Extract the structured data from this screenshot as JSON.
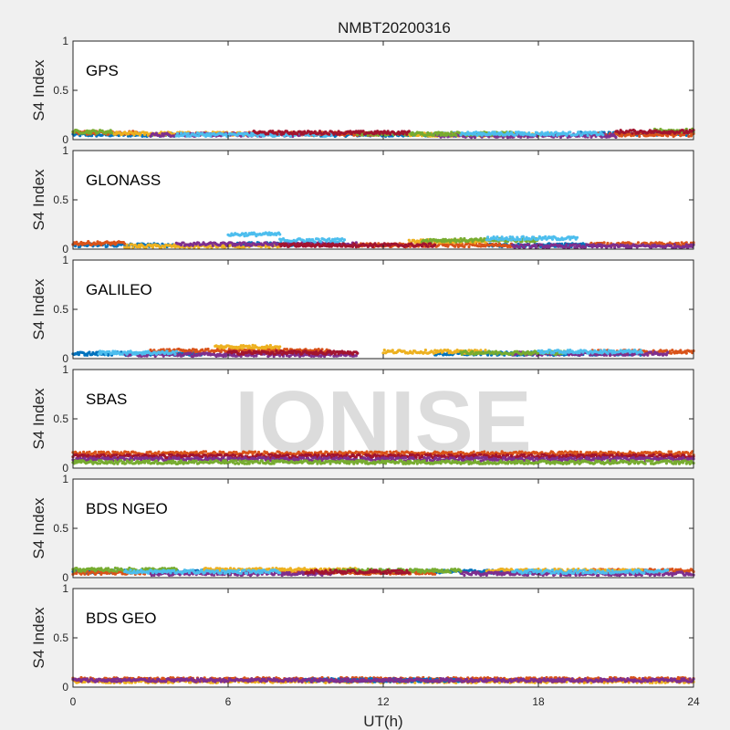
{
  "figure": {
    "title": "NMBT20200316",
    "xlabel": "UT(h)",
    "x_ticks": [
      "0",
      "6",
      "12",
      "18",
      "24"
    ],
    "watermark": "IONISE"
  },
  "colors": {
    "background": "#f0f0f0",
    "axes_bg": "#ffffff",
    "series": [
      "#0072bd",
      "#d95319",
      "#edb120",
      "#7e2f8e",
      "#77ac30",
      "#4dbeee",
      "#a2142f"
    ]
  },
  "chart_data": [
    {
      "type": "scatter",
      "title": "GPS",
      "ylabel": "S4 Index",
      "xlim": [
        0,
        24
      ],
      "ylim": [
        0,
        1
      ],
      "y_ticks": [
        "0",
        "0.5",
        "1"
      ],
      "series": [
        {
          "color": "#0072bd",
          "segments": [
            {
              "x0": 0,
              "x1": 4,
              "y": 0.05
            },
            {
              "x0": 9,
              "x1": 15,
              "y": 0.05
            },
            {
              "x0": 19.5,
              "x1": 24,
              "y": 0.06
            }
          ]
        },
        {
          "color": "#d95319",
          "segments": [
            {
              "x0": 0,
              "x1": 2.5,
              "y": 0.07
            },
            {
              "x0": 6,
              "x1": 12,
              "y": 0.06
            },
            {
              "x0": 20,
              "x1": 24,
              "y": 0.05
            }
          ]
        },
        {
          "color": "#edb120",
          "segments": [
            {
              "x0": 1.5,
              "x1": 7,
              "y": 0.06
            },
            {
              "x0": 13,
              "x1": 19,
              "y": 0.05
            }
          ]
        },
        {
          "color": "#7e2f8e",
          "segments": [
            {
              "x0": 3,
              "x1": 9,
              "y": 0.05
            },
            {
              "x0": 14,
              "x1": 21,
              "y": 0.04
            }
          ]
        },
        {
          "color": "#77ac30",
          "segments": [
            {
              "x0": 0,
              "x1": 1.5,
              "y": 0.08
            },
            {
              "x0": 11,
              "x1": 17,
              "y": 0.06
            },
            {
              "x0": 22.5,
              "x1": 24,
              "y": 0.09
            }
          ]
        },
        {
          "color": "#4dbeee",
          "segments": [
            {
              "x0": 4,
              "x1": 10,
              "y": 0.05
            },
            {
              "x0": 15,
              "x1": 20.5,
              "y": 0.06
            }
          ]
        },
        {
          "color": "#a2142f",
          "segments": [
            {
              "x0": 7,
              "x1": 13,
              "y": 0.07
            },
            {
              "x0": 21,
              "x1": 24,
              "y": 0.08
            }
          ]
        }
      ]
    },
    {
      "type": "scatter",
      "title": "GLONASS",
      "ylabel": "S4 Index",
      "xlim": [
        0,
        24
      ],
      "ylim": [
        0,
        1
      ],
      "y_ticks": [
        "0",
        "0.5",
        "1"
      ],
      "series": [
        {
          "color": "#0072bd",
          "segments": [
            {
              "x0": 0,
              "x1": 4,
              "y": 0.04
            },
            {
              "x0": 6,
              "x1": 10,
              "y": 0.05
            },
            {
              "x0": 16,
              "x1": 20,
              "y": 0.04
            }
          ]
        },
        {
          "color": "#d95319",
          "segments": [
            {
              "x0": 0,
              "x1": 2,
              "y": 0.06
            },
            {
              "x0": 11,
              "x1": 17,
              "y": 0.04
            },
            {
              "x0": 20,
              "x1": 24,
              "y": 0.05
            }
          ]
        },
        {
          "color": "#edb120",
          "segments": [
            {
              "x0": 2,
              "x1": 8,
              "y": 0.03
            },
            {
              "x0": 13,
              "x1": 16,
              "y": 0.08
            }
          ]
        },
        {
          "color": "#7e2f8e",
          "segments": [
            {
              "x0": 4,
              "x1": 11,
              "y": 0.05
            },
            {
              "x0": 17,
              "x1": 24,
              "y": 0.03
            }
          ]
        },
        {
          "color": "#77ac30",
          "segments": [
            {
              "x0": 13.5,
              "x1": 18,
              "y": 0.09
            }
          ]
        },
        {
          "color": "#4dbeee",
          "segments": [
            {
              "x0": 6,
              "x1": 8,
              "y": 0.15
            },
            {
              "x0": 8,
              "x1": 10.5,
              "y": 0.09
            },
            {
              "x0": 16,
              "x1": 19.5,
              "y": 0.11
            }
          ]
        },
        {
          "color": "#a2142f",
          "segments": [
            {
              "x0": 8,
              "x1": 14,
              "y": 0.04
            }
          ]
        }
      ]
    },
    {
      "type": "scatter",
      "title": "GALILEO",
      "ylabel": "S4 Index",
      "xlim": [
        0,
        24
      ],
      "ylim": [
        0,
        1
      ],
      "y_ticks": [
        "0",
        "0.5",
        "1"
      ],
      "series": [
        {
          "color": "#0072bd",
          "segments": [
            {
              "x0": 0,
              "x1": 5,
              "y": 0.05
            },
            {
              "x0": 14,
              "x1": 22,
              "y": 0.05
            }
          ]
        },
        {
          "color": "#d95319",
          "segments": [
            {
              "x0": 3,
              "x1": 10,
              "y": 0.08
            },
            {
              "x0": 20,
              "x1": 24,
              "y": 0.07
            }
          ]
        },
        {
          "color": "#edb120",
          "segments": [
            {
              "x0": 5.5,
              "x1": 8,
              "y": 0.12
            },
            {
              "x0": 12,
              "x1": 16,
              "y": 0.07
            }
          ]
        },
        {
          "color": "#7e2f8e",
          "segments": [
            {
              "x0": 2,
              "x1": 11,
              "y": 0.04
            },
            {
              "x0": 17,
              "x1": 23,
              "y": 0.05
            }
          ]
        },
        {
          "color": "#77ac30",
          "segments": [
            {
              "x0": 15,
              "x1": 19,
              "y": 0.06
            }
          ]
        },
        {
          "color": "#4dbeee",
          "segments": [
            {
              "x0": 1,
              "x1": 4,
              "y": 0.06
            },
            {
              "x0": 18,
              "x1": 22,
              "y": 0.07
            }
          ]
        },
        {
          "color": "#a2142f",
          "segments": [
            {
              "x0": 6,
              "x1": 11,
              "y": 0.06
            }
          ]
        }
      ]
    },
    {
      "type": "scatter",
      "title": "SBAS",
      "ylabel": "S4 Index",
      "xlim": [
        0,
        24
      ],
      "ylim": [
        0,
        1
      ],
      "y_ticks": [
        "0",
        "0.5",
        "1"
      ],
      "series": [
        {
          "color": "#d95319",
          "segments": [
            {
              "x0": 0,
              "x1": 24,
              "y": 0.15
            }
          ]
        },
        {
          "color": "#a2142f",
          "segments": [
            {
              "x0": 0,
              "x1": 24,
              "y": 0.12
            }
          ]
        },
        {
          "color": "#7e2f8e",
          "segments": [
            {
              "x0": 0,
              "x1": 24,
              "y": 0.09
            }
          ]
        },
        {
          "color": "#77ac30",
          "segments": [
            {
              "x0": 0,
              "x1": 24,
              "y": 0.06
            }
          ]
        }
      ]
    },
    {
      "type": "scatter",
      "title": "BDS NGEO",
      "ylabel": "S4 Index",
      "xlim": [
        0,
        24
      ],
      "ylim": [
        0,
        1
      ],
      "y_ticks": [
        "0",
        "0.5",
        "1"
      ],
      "series": [
        {
          "color": "#0072bd",
          "segments": [
            {
              "x0": 0,
              "x1": 6,
              "y": 0.06
            },
            {
              "x0": 12,
              "x1": 18,
              "y": 0.06
            }
          ]
        },
        {
          "color": "#d95319",
          "segments": [
            {
              "x0": 0,
              "x1": 3,
              "y": 0.05
            },
            {
              "x0": 8,
              "x1": 14,
              "y": 0.05
            },
            {
              "x0": 20,
              "x1": 24,
              "y": 0.07
            }
          ]
        },
        {
          "color": "#edb120",
          "segments": [
            {
              "x0": 5,
              "x1": 11,
              "y": 0.08
            },
            {
              "x0": 16,
              "x1": 22,
              "y": 0.07
            }
          ]
        },
        {
          "color": "#7e2f8e",
          "segments": [
            {
              "x0": 3,
              "x1": 10,
              "y": 0.04
            },
            {
              "x0": 15,
              "x1": 24,
              "y": 0.04
            }
          ]
        },
        {
          "color": "#77ac30",
          "segments": [
            {
              "x0": 0,
              "x1": 4,
              "y": 0.08
            },
            {
              "x0": 10,
              "x1": 15,
              "y": 0.07
            }
          ]
        },
        {
          "color": "#4dbeee",
          "segments": [
            {
              "x0": 2,
              "x1": 8,
              "y": 0.06
            },
            {
              "x0": 17,
              "x1": 23,
              "y": 0.06
            }
          ]
        },
        {
          "color": "#a2142f",
          "segments": [
            {
              "x0": 9,
              "x1": 13,
              "y": 0.06
            }
          ]
        }
      ]
    },
    {
      "type": "scatter",
      "title": "BDS GEO",
      "ylabel": "S4 Index",
      "xlim": [
        0,
        24
      ],
      "ylim": [
        0,
        1
      ],
      "y_ticks": [
        "0",
        "0.5",
        "1"
      ],
      "series": [
        {
          "color": "#edb120",
          "segments": [
            {
              "x0": 0,
              "x1": 24,
              "y": 0.06
            }
          ]
        },
        {
          "color": "#d95319",
          "segments": [
            {
              "x0": 0,
              "x1": 24,
              "y": 0.08
            }
          ]
        },
        {
          "color": "#0072bd",
          "segments": [
            {
              "x0": 9,
              "x1": 15,
              "y": 0.07
            }
          ]
        },
        {
          "color": "#7e2f8e",
          "segments": [
            {
              "x0": 0,
              "x1": 24,
              "y": 0.07
            }
          ]
        }
      ]
    }
  ]
}
